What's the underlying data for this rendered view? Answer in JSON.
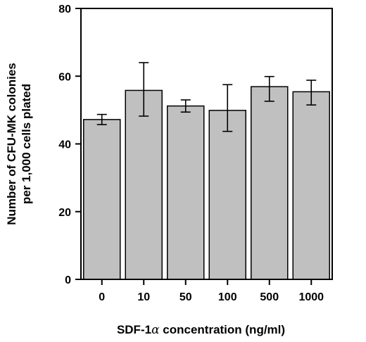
{
  "chart_data": {
    "type": "bar",
    "categories": [
      "0",
      "10",
      "50",
      "100",
      "500",
      "1000"
    ],
    "values": [
      47.2,
      55.8,
      51.2,
      49.9,
      56.9,
      55.4
    ],
    "error_upper": [
      1.5,
      8.2,
      1.8,
      7.6,
      3.0,
      3.4
    ],
    "error_lower": [
      1.5,
      7.6,
      1.8,
      6.2,
      4.3,
      3.9
    ],
    "xlabel_prefix": "SDF-1",
    "xlabel_symbol": "α",
    "xlabel_suffix": " concentration (ng/ml)",
    "ylabel_line1": "Number of CFU-MK colonies",
    "ylabel_line2": "per 1,000  cells plated",
    "ylim": [
      0,
      80
    ],
    "yticks": [
      0,
      20,
      40,
      60,
      80
    ],
    "bar_color": "#c0c0c0",
    "grid": false
  }
}
